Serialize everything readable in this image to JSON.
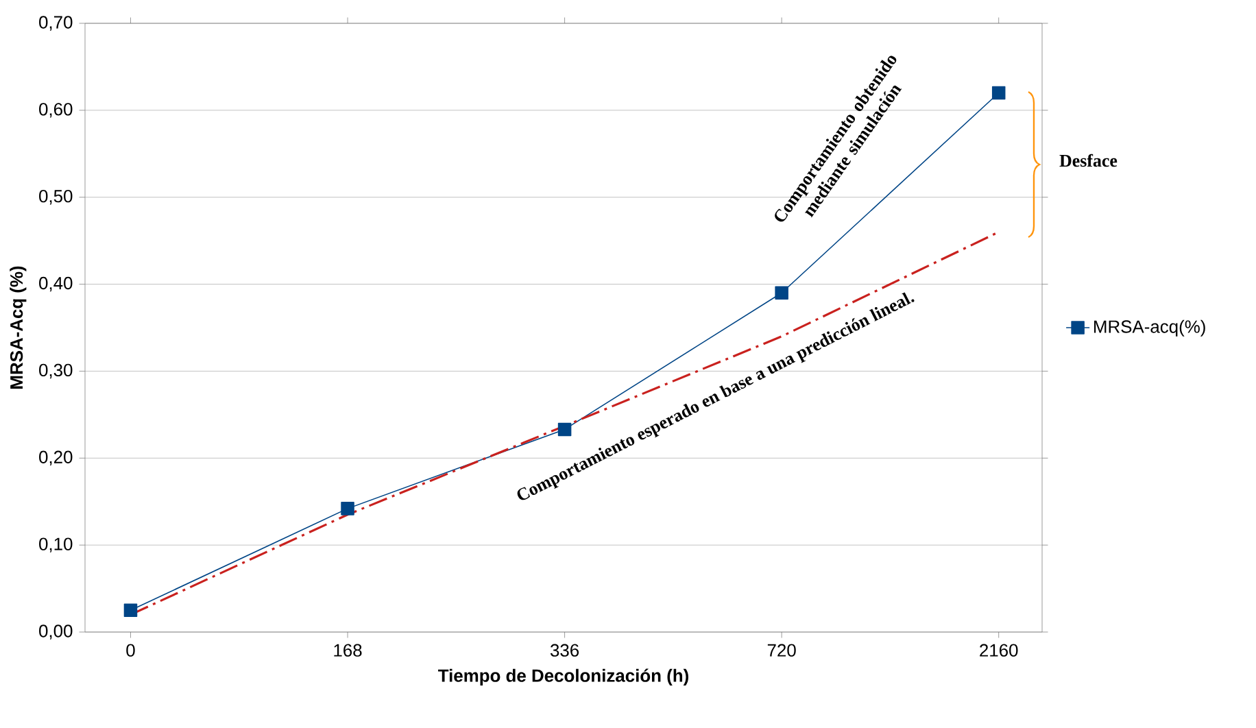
{
  "chart_data": {
    "type": "line",
    "xlabel": "Tiempo de Decolonización (h)",
    "ylabel": "MRSA-Acq (%)",
    "categories": [
      "0",
      "168",
      "336",
      "720",
      "2160"
    ],
    "series": [
      {
        "name": "MRSA-acq(%)",
        "color": "#004586",
        "values": [
          0.025,
          0.142,
          0.233,
          0.39,
          0.62
        ],
        "marker": "square",
        "line_style": "solid"
      },
      {
        "type": "line",
        "color": "#c9211e",
        "values": [
          0.02,
          0.135,
          0.237,
          0.34,
          0.46
        ],
        "marker": "none",
        "line_style": "dashed"
      }
    ],
    "ylim": [
      0,
      0.7
    ],
    "yticks": [
      {
        "value": 0,
        "label": "0,00"
      },
      {
        "value": 0.1,
        "label": "0,10"
      },
      {
        "value": 0.2,
        "label": "0,20"
      },
      {
        "value": 0.3,
        "label": "0,30"
      },
      {
        "value": 0.4,
        "label": "0,40"
      },
      {
        "value": 0.5,
        "label": "0,50"
      },
      {
        "value": 0.6,
        "label": "0,60"
      },
      {
        "value": 0.7,
        "label": "0,70"
      }
    ],
    "grid": "y",
    "legend": "right",
    "annotations": [
      "Comportamiento obtenido mediante simulación",
      "Comportamiento esperado en base a una predicción lineal.",
      "Desface"
    ]
  }
}
